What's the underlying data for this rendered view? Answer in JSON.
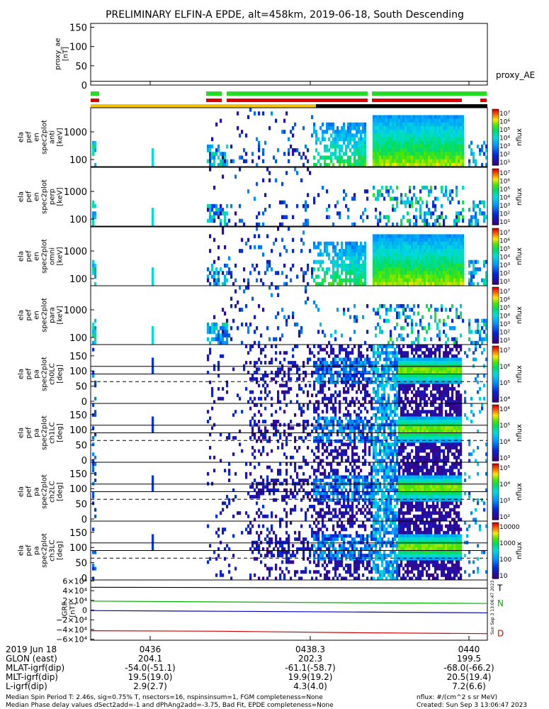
{
  "chart_data": {
    "type": "heatmap",
    "title": "PRELIMINARY ELFIN-A EPDE, alt=458km, 2019-06-18, South Descending",
    "panels": [
      {
        "ylabel": [
          "proxy_ae",
          "[nT]"
        ],
        "ticks": [
          "150",
          "100",
          "50",
          "0"
        ],
        "tick_values": [
          150,
          100,
          50,
          0
        ],
        "ylim": [
          0,
          160
        ],
        "series_label": "proxy_AE",
        "type": "line"
      },
      {
        "ylabel": [
          "ela",
          "pef",
          "en",
          "spec2plot",
          "anti",
          "[keV]"
        ],
        "ticks": [
          "1000",
          "100"
        ],
        "colorbar": {
          "label": "nflux",
          "ticks": [
            "10⁷",
            "10⁶",
            "10⁵",
            "10⁴",
            "10³",
            "10²",
            "10¹"
          ]
        }
      },
      {
        "ylabel": [
          "ela",
          "pef",
          "en",
          "spec2plot",
          "perp",
          "[keV]"
        ],
        "ticks": [
          "1000",
          "100"
        ],
        "colorbar": {
          "label": "nflux",
          "ticks": [
            "10⁷",
            "10⁶",
            "10⁵",
            "10⁴",
            "10³",
            "10²",
            "10¹"
          ]
        }
      },
      {
        "ylabel": [
          "ela",
          "pef",
          "en",
          "spec2plot",
          "omni",
          "[keV]"
        ],
        "ticks": [
          "1000",
          "100"
        ],
        "colorbar": {
          "label": "nflux",
          "ticks": [
            "10⁷",
            "10⁶",
            "10⁵",
            "10⁴",
            "10³",
            "10²",
            "10¹"
          ]
        }
      },
      {
        "ylabel": [
          "ela",
          "pef",
          "en",
          "spec2plot",
          "para",
          "[keV]"
        ],
        "ticks": [
          "1000",
          "100"
        ],
        "colorbar": {
          "label": "nflux",
          "ticks": [
            "10⁷",
            "10⁶",
            "10⁵",
            "10⁴",
            "10³",
            "10²",
            "10¹"
          ]
        }
      },
      {
        "ylabel": [
          "ela",
          "pef",
          "pa",
          "spec2plot",
          "ch0LC",
          "[deg]"
        ],
        "ticks": [
          "150",
          "100",
          "50",
          "0"
        ],
        "colorbar": {
          "label": "nflux",
          "ticks": [
            "10⁷",
            "10⁶",
            "10⁵",
            "10⁴"
          ]
        }
      },
      {
        "ylabel": [
          "ela",
          "pef",
          "pa",
          "spec2plot",
          "ch1LC",
          "[deg]"
        ],
        "ticks": [
          "150",
          "100",
          "50",
          "0"
        ],
        "colorbar": {
          "label": "nflux",
          "ticks": [
            "10⁶",
            "10⁵",
            "10⁴",
            "10³"
          ]
        }
      },
      {
        "ylabel": [
          "ela",
          "pef",
          "pa",
          "spec2plot",
          "ch2LC",
          "[deg]"
        ],
        "ticks": [
          "150",
          "100",
          "50",
          "0"
        ],
        "colorbar": {
          "label": "nflux",
          "ticks": [
            "10⁵",
            "10⁴",
            "10³",
            "10²"
          ]
        }
      },
      {
        "ylabel": [
          "ela",
          "pef",
          "pa",
          "spec2plot",
          "ch3LC",
          "[deg]"
        ],
        "ticks": [
          "150",
          "100",
          "50",
          "0"
        ],
        "colorbar": {
          "label": "nflux",
          "ticks": [
            "10000",
            "1000",
            "100",
            "10"
          ]
        }
      },
      {
        "ylabel": [
          "IGRF",
          "[nT]"
        ],
        "ticks": [
          "6×10⁴",
          "4×10⁴",
          "2×10⁴",
          "0",
          "−2×10⁴",
          "−4×10⁴",
          "−6×10⁴"
        ],
        "tick_values": [
          60000,
          40000,
          20000,
          0,
          -20000,
          -40000,
          -60000
        ],
        "ylim": [
          -62000,
          62000
        ],
        "type": "line",
        "series": [
          {
            "name": "T",
            "color": "#000000",
            "values": [
              47000,
              46400,
              45800,
              45000
            ]
          },
          {
            "name": "N",
            "color": "#00b000",
            "values": [
              18500,
              16800,
              15200,
              13500
            ]
          },
          {
            "name": "",
            "color": "#0000cc",
            "values": [
              -1000,
              -2500,
              -4000,
              -5500
            ]
          },
          {
            "name": "D",
            "color": "#d00000",
            "values": [
              -42500,
              -43500,
              -46500,
              -48500
            ]
          }
        ]
      }
    ],
    "x_ticks": [
      "0436",
      "0438",
      "0440"
    ],
    "ephemeris": {
      "rows": [
        {
          "label": "2019 Jun 18",
          "values": [
            "0436",
            "0438.3",
            "0440"
          ]
        },
        {
          "label": "GLON (east)",
          "values": [
            "204.1",
            "202.3",
            "199.5"
          ]
        },
        {
          "label": "MLAT-igrf(dip)",
          "values": [
            "-54.0(-51.1)",
            "-61.1(-58.7)",
            "-68.0(-66.2)"
          ]
        },
        {
          "label": "MLT-igrf(dip)",
          "values": [
            "19.5(19.0)",
            "19.9(19.2)",
            "20.5(19.4)"
          ]
        },
        {
          "label": "L-igrf(dip)",
          "values": [
            "2.9(2.7)",
            "4.3(4.0)",
            "7.2(6.6)"
          ]
        }
      ]
    },
    "footer": {
      "line1": "Median Spin Period T: 2.46s, sig=0.75% T, nsectors=16, nspinsinsum=1, FGM completeness=None",
      "line2": "Median Phase delay values dSect2add=-1 and dPhAng2add=-3.75, Bad Fit, EPDE completeness=None",
      "units": "nflux: #/(cm^2 s sr MeV)",
      "created": "Created: Sun Sep  3 13:06:47 2023"
    },
    "side_stamp": "Sun Sep  3 13:06:47 2023"
  }
}
